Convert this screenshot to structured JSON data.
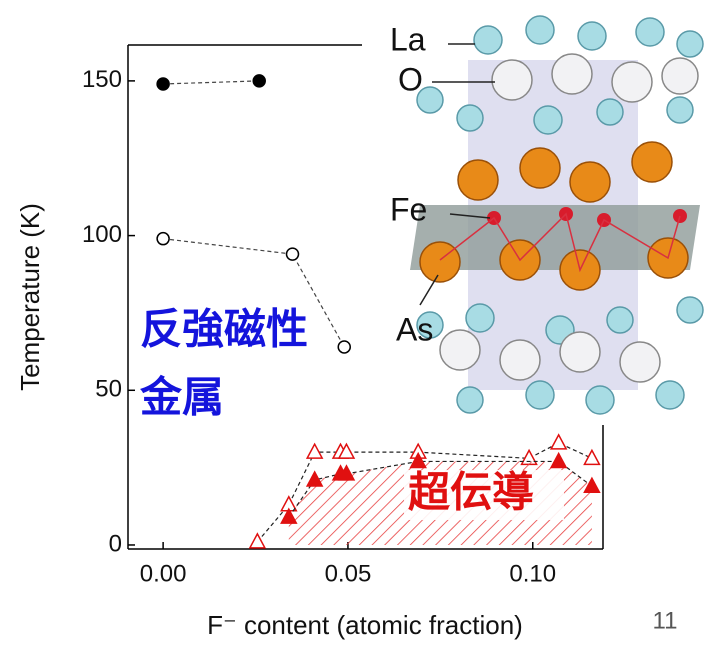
{
  "chart_data": {
    "type": "scatter",
    "x_label": "F⁻ content (atomic fraction)",
    "y_label": "Temperature (K)",
    "xlim": [
      -0.0095,
      0.119
    ],
    "ylim": [
      -1.3,
      161.6
    ],
    "xticks": [
      {
        "value": 0,
        "label": "0.00"
      },
      {
        "value": 0.05,
        "label": "0.05"
      },
      {
        "value": 0.1,
        "label": "0.10"
      }
    ],
    "yticks": [
      0,
      50,
      100,
      150
    ],
    "series": [
      {
        "color": "#000000",
        "marker": "circle",
        "filled": true,
        "x": [
          0,
          0.026
        ],
        "values": [
          149,
          150
        ]
      },
      {
        "color": "#000000",
        "marker": "circle",
        "filled": false,
        "x": [
          0,
          0.035,
          0.049
        ],
        "values": [
          99,
          94,
          64
        ]
      },
      {
        "color": "#e01010",
        "marker": "triangle",
        "filled": false,
        "x": [
          0.0255,
          0.034,
          0.041,
          0.048,
          0.0496,
          0.069,
          0.099,
          0.107,
          0.116
        ],
        "values": [
          1,
          13,
          30,
          30,
          30,
          30,
          28,
          33,
          28
        ]
      },
      {
        "color": "#e01010",
        "marker": "triangle",
        "filled": true,
        "hatch": true,
        "x": [
          0.034,
          0.041,
          0.048,
          0.0496,
          0.069,
          0.107,
          0.116
        ],
        "values": [
          9,
          21,
          23,
          23,
          27,
          27,
          19
        ]
      }
    ],
    "annotations": [
      "反強磁性",
      "金属",
      "超伝導"
    ],
    "inset_labels": [
      "La",
      "O",
      "Fe",
      "As"
    ]
  },
  "slide": {
    "page_number": "11"
  }
}
